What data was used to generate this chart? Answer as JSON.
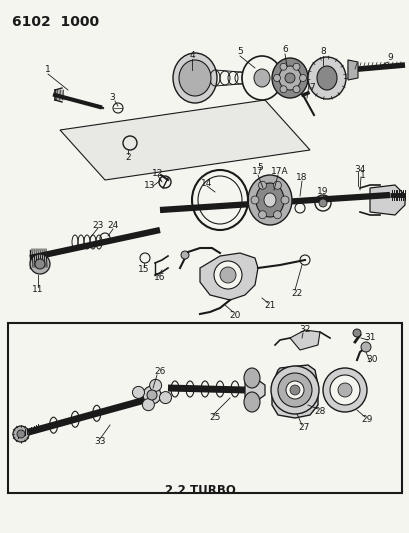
{
  "title": "6102  1000",
  "bg_color": "#f5f5f0",
  "line_color": "#1a1a1a",
  "gray1": "#b0b0b0",
  "gray2": "#888888",
  "gray3": "#d0d0d0",
  "white": "#f5f5f0",
  "title_fontsize": 10,
  "label_fontsize": 6.5
}
